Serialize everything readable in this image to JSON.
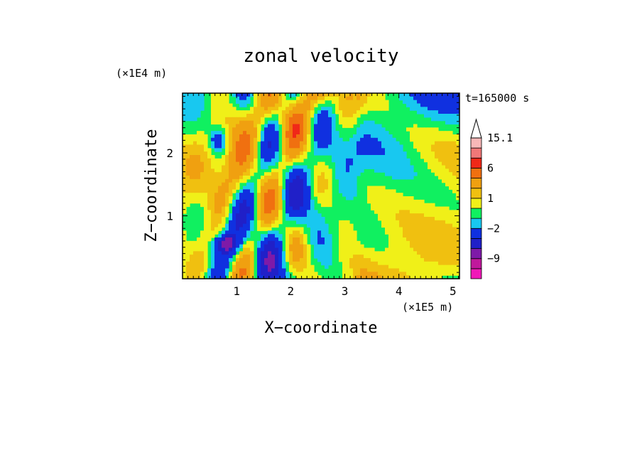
{
  "chart_data": {
    "type": "heatmap",
    "title": "zonal velocity",
    "xlabel": "X−coordinate",
    "ylabel": "Z−coordinate",
    "x_unit": "(×1E5 m)",
    "y_unit": "(×1E4 m)",
    "time_label": "t=165000 s",
    "xlim": [
      0,
      5.12
    ],
    "ylim": [
      0,
      2.95
    ],
    "x_ticks": [
      {
        "value": 1,
        "label": "1"
      },
      {
        "value": 2,
        "label": "2"
      },
      {
        "value": 3,
        "label": "3"
      },
      {
        "value": 4,
        "label": "4"
      },
      {
        "value": 5,
        "label": "5"
      }
    ],
    "y_ticks": [
      {
        "value": 1,
        "label": "1"
      },
      {
        "value": 2,
        "label": "2"
      }
    ],
    "colorbar": {
      "levels": [
        {
          "from": -15.1,
          "to": -12,
          "color": "#f018b8"
        },
        {
          "from": -12,
          "to": -9,
          "color": "#c0189c"
        },
        {
          "from": -9,
          "to": -6,
          "color": "#7e1aa8"
        },
        {
          "from": -6,
          "to": -4,
          "color": "#2020c8"
        },
        {
          "from": -4,
          "to": -2,
          "color": "#1030e0"
        },
        {
          "from": -2,
          "to": -1,
          "color": "#18c8f0"
        },
        {
          "from": -1,
          "to": 0,
          "color": "#10f060"
        },
        {
          "from": 0,
          "to": 1,
          "color": "#f0f018"
        },
        {
          "from": 1,
          "to": 2,
          "color": "#f0c010"
        },
        {
          "from": 2,
          "to": 4,
          "color": "#f0a010"
        },
        {
          "from": 4,
          "to": 6,
          "color": "#f07010"
        },
        {
          "from": 6,
          "to": 9,
          "color": "#f02818"
        },
        {
          "from": 9,
          "to": 12,
          "color": "#f07878"
        },
        {
          "from": 12,
          "to": 15.1,
          "color": "#f8b8b8"
        }
      ],
      "extend": "max",
      "labels": [
        {
          "value": 15.1,
          "text": "15.1"
        },
        {
          "value": 6,
          "text": "6"
        },
        {
          "value": 1,
          "text": "1"
        },
        {
          "value": -2,
          "text": "−2"
        },
        {
          "value": -9,
          "text": "−9"
        }
      ]
    }
  }
}
